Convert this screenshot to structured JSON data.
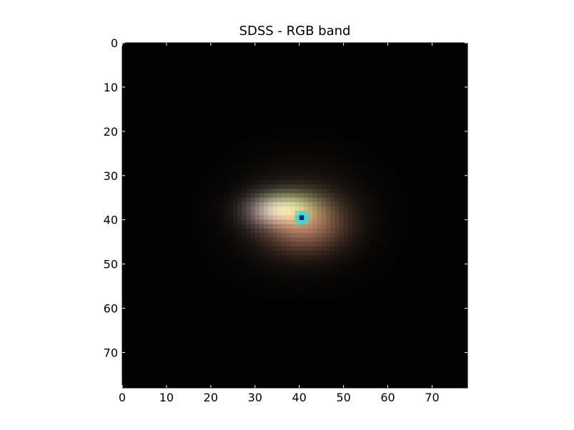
{
  "chart_data": {
    "type": "heatmap",
    "title": "SDSS - RGB band",
    "xlabel": "",
    "ylabel": "",
    "image_size": [
      78,
      78
    ],
    "xlim": [
      0,
      78
    ],
    "ylim": [
      78,
      0
    ],
    "x_ticks": [
      0,
      10,
      20,
      30,
      40,
      50,
      60,
      70
    ],
    "y_ticks": [
      0,
      10,
      20,
      30,
      40,
      50,
      60,
      70
    ],
    "grid": false,
    "background_color": "#020202",
    "source": {
      "center_x": 40,
      "center_y": 39,
      "core_color": "#1a1aa0",
      "ring_color": "#2ee0c8",
      "components": [
        {
          "x": 41,
          "y": 41,
          "sx": 6,
          "sy": 4,
          "color": "#ffa882",
          "strength": 0.55
        },
        {
          "x": 38,
          "y": 37,
          "sx": 5,
          "sy": 2.5,
          "color": "#9be07a",
          "strength": 0.5
        },
        {
          "x": 33,
          "y": 38,
          "sx": 4,
          "sy": 2.5,
          "color": "#c8a6d8",
          "strength": 0.45
        },
        {
          "x": 40,
          "y": 39,
          "sx": 10,
          "sy": 8,
          "color": "#6a5040",
          "strength": 0.35
        }
      ]
    }
  }
}
